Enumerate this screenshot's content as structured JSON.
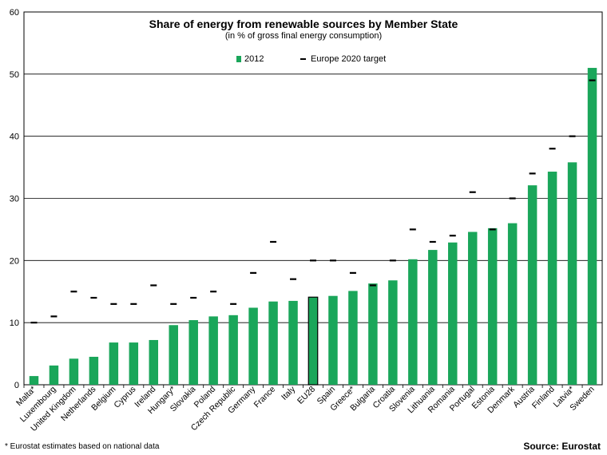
{
  "chart_data": {
    "type": "bar",
    "title": "Share of energy from renewable sources by Member State",
    "subtitle": "(in % of gross final energy consumption)",
    "categories": [
      "Malta*",
      "Luxembourg",
      "United Kingdom",
      "Netherlands",
      "Belgium",
      "Cyprus",
      "Ireland",
      "Hungary*",
      "Slovakia",
      "Poland",
      "Czech Republic",
      "Germany",
      "France",
      "Italy",
      "EU28",
      "Spain",
      "Greece*",
      "Bulgaria",
      "Croatia",
      "Slovenia",
      "Lithuania",
      "Romania",
      "Portugal",
      "Estonia",
      "Denmark",
      "Austria",
      "Finland",
      "Latvia*",
      "Sweden"
    ],
    "series": [
      {
        "name": "2012",
        "type": "bar",
        "color": "#1aa65a",
        "values": [
          1.4,
          3.1,
          4.2,
          4.5,
          6.8,
          6.8,
          7.2,
          9.6,
          10.4,
          11.0,
          11.2,
          12.4,
          13.4,
          13.5,
          14.1,
          14.3,
          15.1,
          16.3,
          16.8,
          20.2,
          21.7,
          22.9,
          24.6,
          25.2,
          26.0,
          32.1,
          34.3,
          35.8,
          51.0
        ]
      },
      {
        "name": "Europe 2020 target",
        "type": "marker",
        "color": "#000000",
        "values": [
          10,
          11,
          15,
          14,
          13,
          13,
          16,
          13,
          14,
          15,
          13,
          18,
          23,
          17,
          20,
          20,
          18,
          16,
          20,
          25,
          23,
          24,
          31,
          25,
          30,
          34,
          38,
          40,
          49
        ]
      }
    ],
    "highlight_category": "EU28",
    "xlabel": "",
    "ylabel": "",
    "ylim": [
      0,
      60
    ],
    "yticks": [
      0,
      10,
      20,
      30,
      40,
      50,
      60
    ],
    "grid": true,
    "legend": [
      "2012",
      "Europe 2020 target"
    ]
  },
  "footnote": "* Eurostat estimates based on national data",
  "source": "Source: Eurostat"
}
